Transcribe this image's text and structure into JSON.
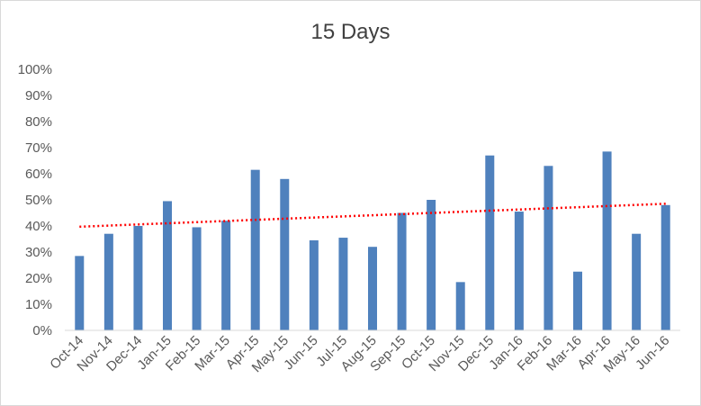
{
  "chart_data": {
    "type": "bar",
    "title": "15 Days",
    "xlabel": "",
    "ylabel": "",
    "ylim": [
      0,
      1
    ],
    "y_ticks": [
      "0%",
      "10%",
      "20%",
      "30%",
      "40%",
      "50%",
      "60%",
      "70%",
      "80%",
      "90%",
      "100%"
    ],
    "categories": [
      "Oct-14",
      "Nov-14",
      "Dec-14",
      "Jan-15",
      "Feb-15",
      "Mar-15",
      "Apr-15",
      "May-15",
      "Jun-15",
      "Jul-15",
      "Aug-15",
      "Sep-15",
      "Oct-15",
      "Nov-15",
      "Dec-15",
      "Jan-16",
      "Feb-16",
      "Mar-16",
      "Apr-16",
      "May-16",
      "Jun-16"
    ],
    "series": [
      {
        "values": [
          0.285,
          0.37,
          0.4,
          0.495,
          0.395,
          0.42,
          0.615,
          0.58,
          0.345,
          0.355,
          0.32,
          0.45,
          0.5,
          0.185,
          0.67,
          0.455,
          0.63,
          0.225,
          0.685,
          0.37,
          0.48
        ],
        "color": "#4f81bd"
      }
    ],
    "trendline": {
      "style": "dotted",
      "type": "linear",
      "color": "#ff0000",
      "start": 0.397,
      "end": 0.485
    },
    "grid": false,
    "legend": "none"
  }
}
